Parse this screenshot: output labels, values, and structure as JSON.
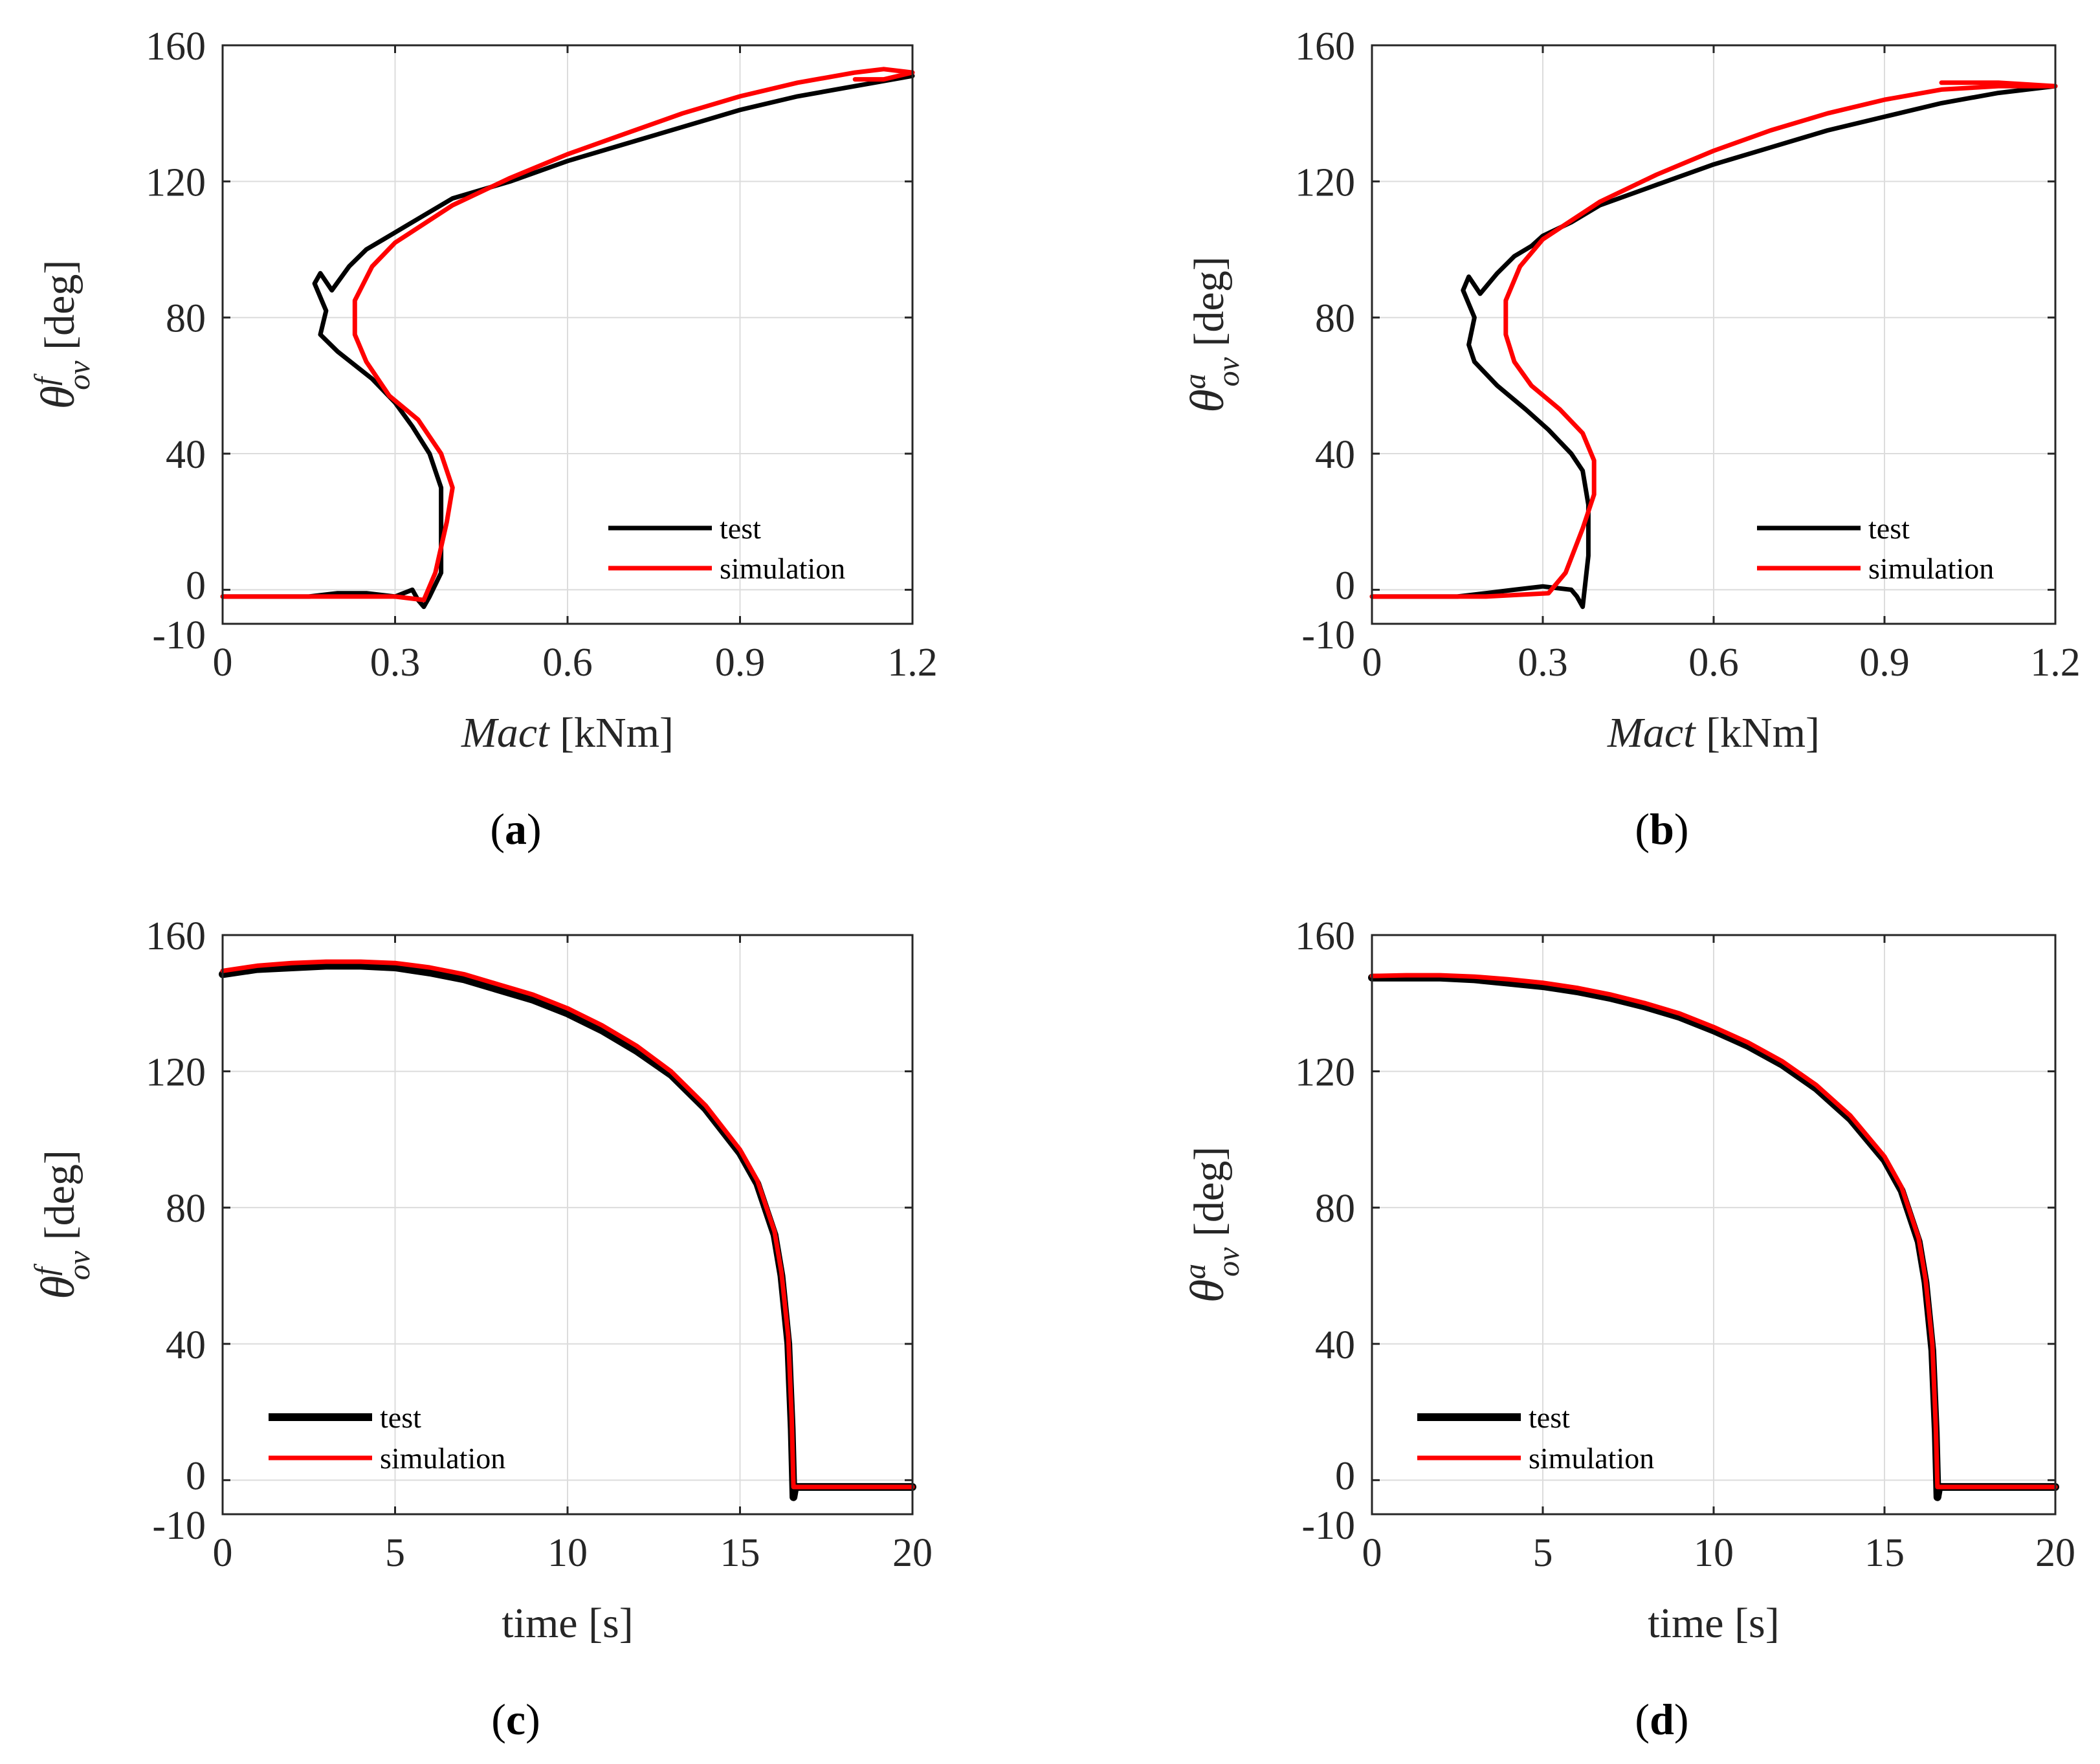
{
  "chart_data": [
    {
      "id": "a",
      "type": "line",
      "panel_label": "a",
      "xlabel_italic": "Mact",
      "xlabel_unit": "[kNm]",
      "ylabel_sym": "θ",
      "ylabel_sup": "f",
      "ylabel_sub": "ov",
      "ylabel_unit": "[deg]",
      "xlim": [
        0,
        1.2
      ],
      "ylim": [
        -10,
        160
      ],
      "xticks": [
        0,
        0.3,
        0.6,
        0.9,
        1.2
      ],
      "xtick_labels": [
        "0",
        "0.3",
        "0.6",
        "0.9",
        "1.2"
      ],
      "yticks": [
        -10,
        0,
        40,
        80,
        120,
        160
      ],
      "ytick_labels": [
        "-10",
        "0",
        "40",
        "80",
        "120",
        "160"
      ],
      "grid": true,
      "legend_position": "lower-right",
      "series": [
        {
          "name": "test",
          "color": "#000000",
          "x": [
            0,
            0.15,
            0.2,
            0.25,
            0.3,
            0.33,
            0.34,
            0.35,
            0.36,
            0.38,
            0.38,
            0.36,
            0.33,
            0.3,
            0.26,
            0.2,
            0.17,
            0.18,
            0.16,
            0.17,
            0.19,
            0.22,
            0.25,
            0.28,
            0.3,
            0.35,
            0.4,
            0.5,
            0.6,
            0.7,
            0.8,
            0.9,
            1.0,
            1.1,
            1.2
          ],
          "y": [
            -2,
            -2,
            -1,
            -1,
            -2,
            0,
            -3,
            -5,
            -2,
            5,
            30,
            40,
            48,
            55,
            62,
            70,
            75,
            82,
            90,
            93,
            88,
            95,
            100,
            103,
            105,
            110,
            115,
            120,
            126,
            131,
            136,
            141,
            145,
            148,
            151
          ]
        },
        {
          "name": "simulation",
          "color": "#ff0000",
          "x": [
            0,
            0.2,
            0.3,
            0.35,
            0.37,
            0.39,
            0.4,
            0.38,
            0.34,
            0.29,
            0.25,
            0.23,
            0.23,
            0.26,
            0.3,
            0.4,
            0.5,
            0.6,
            0.7,
            0.8,
            0.9,
            1.0,
            1.1,
            1.15,
            1.2,
            1.15,
            1.1
          ],
          "y": [
            -2,
            -2,
            -2,
            -3,
            5,
            20,
            30,
            40,
            50,
            57,
            67,
            75,
            85,
            95,
            102,
            113,
            121,
            128,
            134,
            140,
            145,
            149,
            152,
            153,
            152,
            150,
            150
          ]
        }
      ]
    },
    {
      "id": "b",
      "type": "line",
      "panel_label": "b",
      "xlabel_italic": "Mact",
      "xlabel_unit": "[kNm]",
      "ylabel_sym": "θ",
      "ylabel_sup": "a",
      "ylabel_sub": "ov",
      "ylabel_unit": "[deg]",
      "xlim": [
        0,
        1.2
      ],
      "ylim": [
        -10,
        160
      ],
      "xticks": [
        0,
        0.3,
        0.6,
        0.9,
        1.2
      ],
      "xtick_labels": [
        "0",
        "0.3",
        "0.6",
        "0.9",
        "1.2"
      ],
      "yticks": [
        -10,
        0,
        40,
        80,
        120,
        160
      ],
      "ytick_labels": [
        "-10",
        "0",
        "40",
        "80",
        "120",
        "160"
      ],
      "grid": true,
      "legend_position": "lower-right",
      "series": [
        {
          "name": "test",
          "color": "#000000",
          "x": [
            0,
            0.15,
            0.2,
            0.25,
            0.3,
            0.35,
            0.36,
            0.37,
            0.38,
            0.38,
            0.37,
            0.35,
            0.31,
            0.27,
            0.22,
            0.18,
            0.17,
            0.18,
            0.16,
            0.17,
            0.19,
            0.22,
            0.25,
            0.28,
            0.3,
            0.35,
            0.4,
            0.5,
            0.6,
            0.7,
            0.8,
            0.9,
            1.0,
            1.1,
            1.2
          ],
          "y": [
            -2,
            -2,
            -1,
            0,
            1,
            0,
            -2,
            -5,
            10,
            25,
            35,
            40,
            47,
            53,
            60,
            67,
            72,
            80,
            88,
            92,
            87,
            93,
            98,
            101,
            104,
            108,
            113,
            119,
            125,
            130,
            135,
            139,
            143,
            146,
            148
          ]
        },
        {
          "name": "simulation",
          "color": "#ff0000",
          "x": [
            0,
            0.2,
            0.31,
            0.34,
            0.37,
            0.39,
            0.39,
            0.37,
            0.33,
            0.28,
            0.25,
            0.235,
            0.235,
            0.26,
            0.3,
            0.4,
            0.5,
            0.6,
            0.7,
            0.8,
            0.9,
            1.0,
            1.1,
            1.2,
            1.1,
            1.0
          ],
          "y": [
            -2,
            -2,
            -1,
            5,
            18,
            28,
            38,
            46,
            53,
            60,
            67,
            75,
            85,
            95,
            103,
            114,
            122,
            129,
            135,
            140,
            144,
            147,
            148,
            148,
            149,
            149
          ]
        }
      ]
    },
    {
      "id": "c",
      "type": "line",
      "panel_label": "c",
      "xlabel_plain": "time [s]",
      "ylabel_sym": "θ",
      "ylabel_sup": "f",
      "ylabel_sub": "ov",
      "ylabel_unit": "[deg]",
      "xlim": [
        0,
        20
      ],
      "ylim": [
        -10,
        160
      ],
      "xticks": [
        0,
        5,
        10,
        15,
        20
      ],
      "xtick_labels": [
        "0",
        "5",
        "10",
        "15",
        "20"
      ],
      "yticks": [
        -10,
        0,
        40,
        80,
        120,
        160
      ],
      "ytick_labels": [
        "-10",
        "0",
        "40",
        "80",
        "120",
        "160"
      ],
      "grid": true,
      "legend_position": "lower-left",
      "series": [
        {
          "name": "test",
          "color": "#000000",
          "x": [
            0,
            1,
            2,
            3,
            4,
            5,
            6,
            7,
            8,
            9,
            10,
            11,
            12,
            13,
            14,
            15,
            15.5,
            16,
            16.2,
            16.4,
            16.5,
            16.55,
            16.6,
            17,
            18,
            19,
            20
          ],
          "y": [
            148.5,
            150,
            150.5,
            151,
            151,
            150.5,
            149,
            147,
            144,
            141,
            137,
            132,
            126,
            119,
            109,
            96,
            87,
            72,
            60,
            40,
            15,
            -5,
            -2,
            -2,
            -2,
            -2,
            -2
          ]
        },
        {
          "name": "simulation",
          "color": "#ff0000",
          "x": [
            0,
            1,
            2,
            3,
            4,
            5,
            6,
            7,
            8,
            9,
            10,
            11,
            12,
            13,
            14,
            15,
            15.5,
            16,
            16.2,
            16.4,
            16.5,
            16.55,
            16.6,
            17,
            18,
            19,
            20
          ],
          "y": [
            149.5,
            151,
            151.8,
            152.2,
            152.2,
            151.8,
            150.5,
            148.5,
            145.5,
            142.5,
            138.5,
            133.5,
            127.5,
            120,
            110,
            97,
            88,
            73,
            61,
            42,
            18,
            -2,
            -2,
            -2,
            -2,
            -2,
            -2
          ]
        }
      ]
    },
    {
      "id": "d",
      "type": "line",
      "panel_label": "d",
      "xlabel_plain": "time [s]",
      "ylabel_sym": "θ",
      "ylabel_sup": "a",
      "ylabel_sub": "ov",
      "ylabel_unit": "[deg]",
      "xlim": [
        0,
        20
      ],
      "ylim": [
        -10,
        160
      ],
      "xticks": [
        0,
        5,
        10,
        15,
        20
      ],
      "xtick_labels": [
        "0",
        "5",
        "10",
        "15",
        "20"
      ],
      "yticks": [
        -10,
        0,
        40,
        80,
        120,
        160
      ],
      "ytick_labels": [
        "-10",
        "0",
        "40",
        "80",
        "120",
        "160"
      ],
      "grid": true,
      "legend_position": "lower-left",
      "series": [
        {
          "name": "test",
          "color": "#000000",
          "x": [
            0,
            1,
            2,
            3,
            4,
            5,
            6,
            7,
            8,
            9,
            10,
            11,
            12,
            13,
            14,
            15,
            15.5,
            16,
            16.2,
            16.4,
            16.5,
            16.55,
            16.6,
            17,
            18,
            19,
            20
          ],
          "y": [
            147.5,
            147.5,
            147.5,
            147,
            146,
            145,
            143.5,
            141.5,
            139,
            136,
            132,
            127.5,
            122,
            115,
            106,
            94,
            85,
            70,
            58,
            38,
            14,
            -5,
            -2,
            -2,
            -2,
            -2,
            -2
          ]
        },
        {
          "name": "simulation",
          "color": "#ff0000",
          "x": [
            0,
            1,
            2,
            3,
            4,
            5,
            6,
            7,
            8,
            9,
            10,
            11,
            12,
            13,
            14,
            15,
            15.5,
            16,
            16.2,
            16.4,
            16.5,
            16.55,
            16.6,
            17,
            18,
            19,
            20
          ],
          "y": [
            148,
            148.2,
            148.2,
            147.8,
            147,
            146,
            144.5,
            142.5,
            140,
            137,
            133,
            128.5,
            123,
            116,
            107,
            95,
            86,
            71,
            59,
            40,
            16,
            -2,
            -2,
            -2,
            -2,
            -2,
            -2
          ]
        }
      ]
    }
  ]
}
